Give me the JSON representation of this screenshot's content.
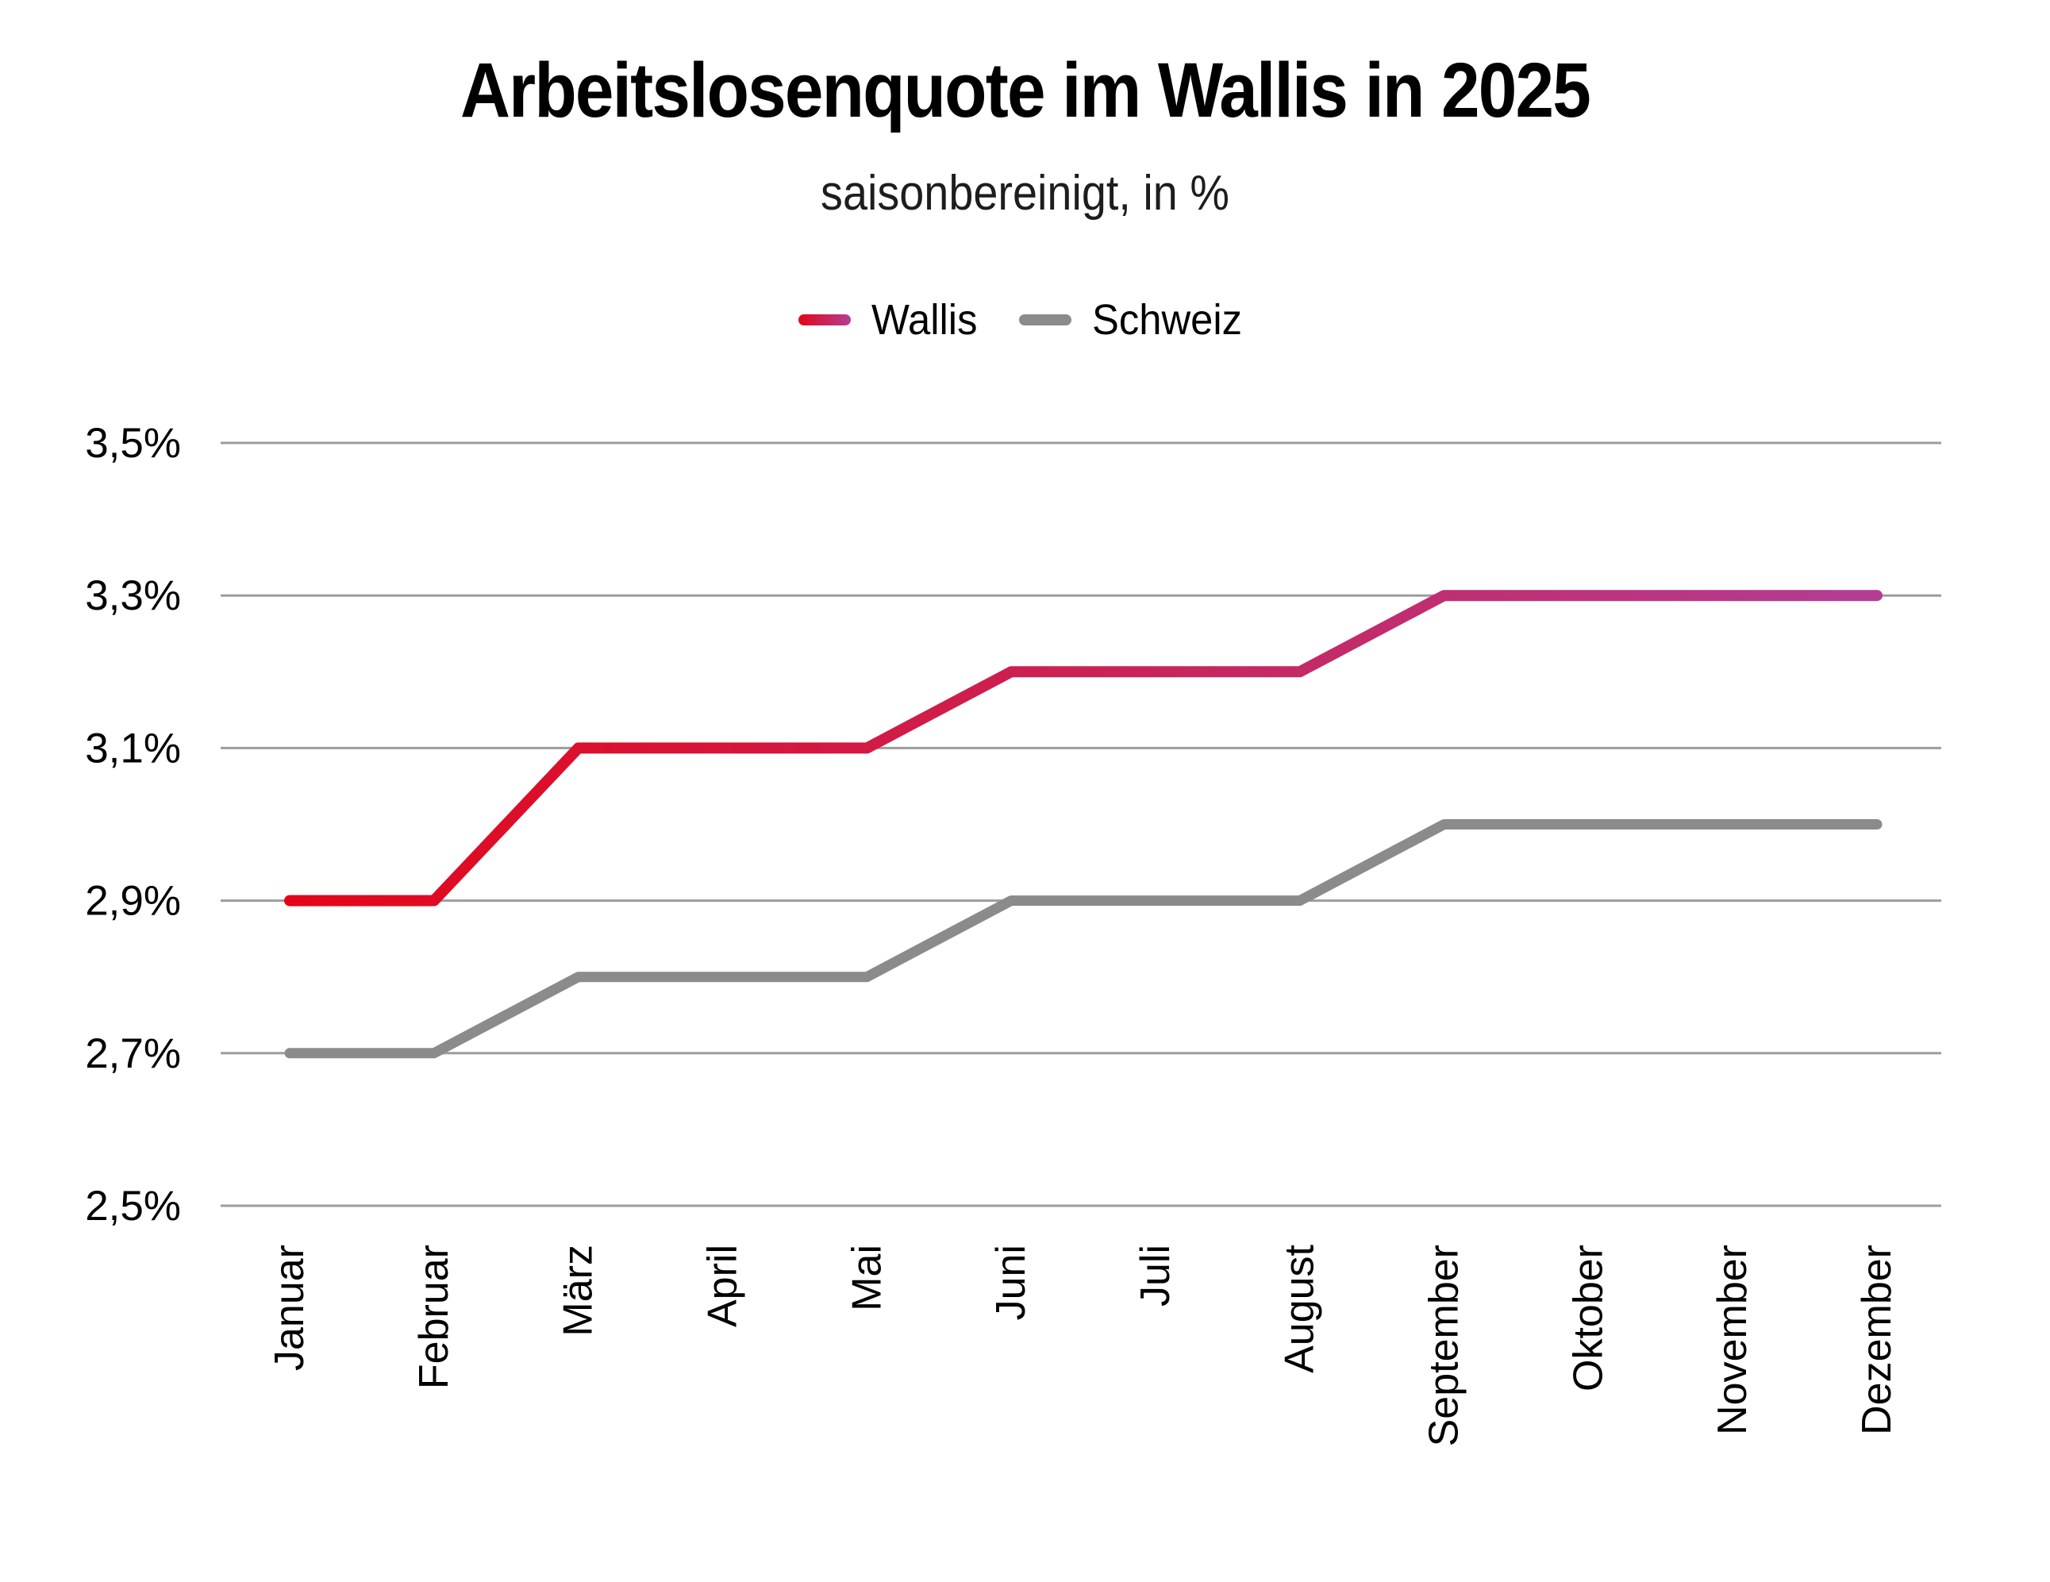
{
  "title": "Arbeitslosenquote im Wallis in 2025",
  "subtitle": "saisonbereinigt, in %",
  "legend": {
    "items": [
      {
        "label": "Wallis",
        "color_start": "#e30617",
        "color_end": "#b23e94"
      },
      {
        "label": "Schweiz",
        "color": "#8b8b8b"
      }
    ]
  },
  "chart_data": {
    "type": "line",
    "title": "Arbeitslosenquote im Wallis in 2025",
    "subtitle": "saisonbereinigt, in %",
    "categories": [
      "Januar",
      "Februar",
      "März",
      "April",
      "Mai",
      "Juni",
      "Juli",
      "August",
      "September",
      "Oktober",
      "November",
      "Dezember"
    ],
    "series": [
      {
        "name": "Wallis",
        "values": [
          2.9,
          2.9,
          3.1,
          3.1,
          3.1,
          3.2,
          3.2,
          3.2,
          3.3,
          3.3,
          3.3,
          3.3
        ],
        "color_start": "#e30617",
        "color_end": "#b23e94",
        "stroke_style": "gradient"
      },
      {
        "name": "Schweiz",
        "values": [
          2.7,
          2.7,
          2.8,
          2.8,
          2.8,
          2.9,
          2.9,
          2.9,
          3.0,
          3.0,
          3.0,
          3.0
        ],
        "color": "#8b8b8b",
        "stroke_style": "solid"
      }
    ],
    "xlabel": "",
    "ylabel": "",
    "ylim": [
      2.5,
      3.5
    ],
    "yticks": [
      3.5,
      3.3,
      3.1,
      2.9,
      2.7,
      2.5
    ],
    "ytick_labels": [
      "3,5%",
      "3,3%",
      "3,1%",
      "2,9%",
      "2,7%",
      "2,5%"
    ],
    "xtick_rotation": -90,
    "grid": "horizontal",
    "gridline_color": "#9d9d9d",
    "legend_position": "top"
  }
}
